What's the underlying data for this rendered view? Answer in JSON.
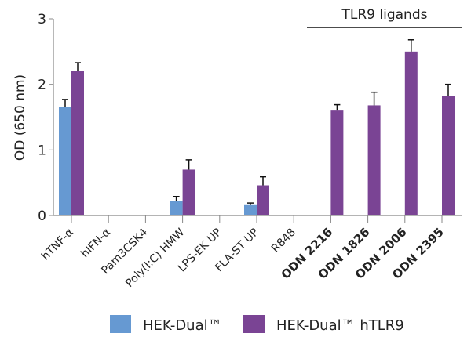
{
  "chart_data": {
    "type": "bar",
    "ylabel": "OD (650 nm)",
    "ylim": [
      0,
      3
    ],
    "yticks": [
      0,
      1,
      2,
      3
    ],
    "grid": false,
    "legend_position": "bottom",
    "categories": [
      "hTNF-α",
      "hIFN-α",
      "Pam3CSK4",
      "Poly(I:C) HMW",
      "LPS-EK UP",
      "FLA-ST UP",
      "R848",
      "ODN 2216",
      "ODN 1826",
      "ODN 2006",
      "ODN 2395"
    ],
    "bold_categories": [
      "ODN 2216",
      "ODN 1826",
      "ODN 2006",
      "ODN 2395"
    ],
    "series": [
      {
        "name": "HEK-Dual™",
        "color": "#6699d2",
        "values": [
          1.65,
          0.01,
          0,
          0.22,
          0.01,
          0.17,
          0.01,
          0.01,
          0.01,
          0.01,
          0.01
        ],
        "errors": [
          0.12,
          0,
          0,
          0.07,
          0,
          0.02,
          0,
          0,
          0,
          0,
          0
        ]
      },
      {
        "name": "HEK-Dual™ hTLR9",
        "color": "#7a4494",
        "values": [
          2.2,
          0.01,
          0.01,
          0.7,
          0,
          0.46,
          0,
          1.6,
          1.68,
          2.5,
          1.82
        ],
        "errors": [
          0.13,
          0,
          0,
          0.15,
          0,
          0.13,
          0,
          0.09,
          0.2,
          0.18,
          0.18
        ]
      }
    ],
    "annotation": {
      "text": "TLR9 ligands",
      "spans": [
        "ODN 2216",
        "ODN 2395"
      ]
    }
  }
}
